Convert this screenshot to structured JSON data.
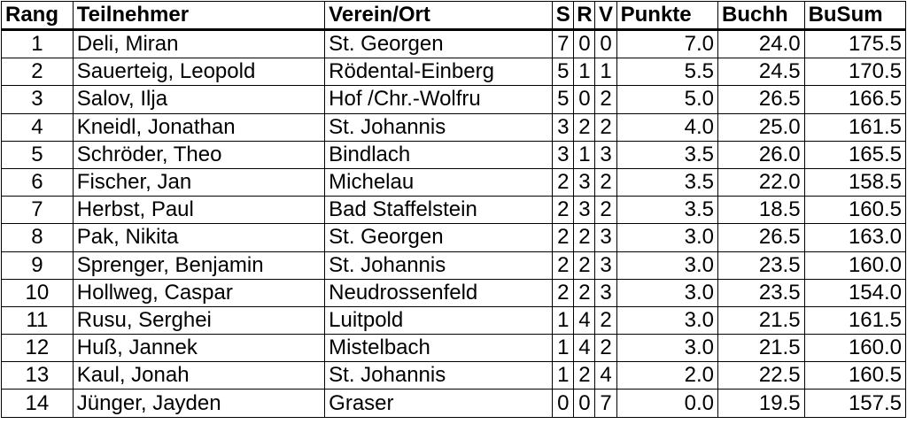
{
  "headers": {
    "rang": "Rang",
    "teilnehmer": "Teilnehmer",
    "verein": "Verein/Ort",
    "s": "S",
    "r": "R",
    "v": "V",
    "punkte": "Punkte",
    "buchh": "Buchh",
    "busum": "BuSum"
  },
  "rows": [
    {
      "rang": "1",
      "name": "Deli, Miran",
      "verein": "St. Georgen",
      "s": "7",
      "r": "0",
      "v": "0",
      "punkte": "7.0",
      "buchh": "24.0",
      "busum": "175.5"
    },
    {
      "rang": "2",
      "name": "Sauerteig, Leopold",
      "verein": "Rödental-Einberg",
      "s": "5",
      "r": "1",
      "v": "1",
      "punkte": "5.5",
      "buchh": "24.5",
      "busum": "170.5"
    },
    {
      "rang": "3",
      "name": "Salov, Ilja",
      "verein": "Hof /Chr.-Wolfru",
      "s": "5",
      "r": "0",
      "v": "2",
      "punkte": "5.0",
      "buchh": "26.5",
      "busum": "166.5"
    },
    {
      "rang": "4",
      "name": "Kneidl, Jonathan",
      "verein": "St. Johannis",
      "s": "3",
      "r": "2",
      "v": "2",
      "punkte": "4.0",
      "buchh": "25.0",
      "busum": "161.5"
    },
    {
      "rang": "5",
      "name": "Schröder, Theo",
      "verein": "Bindlach",
      "s": "3",
      "r": "1",
      "v": "3",
      "punkte": "3.5",
      "buchh": "26.0",
      "busum": "165.5"
    },
    {
      "rang": "6",
      "name": "Fischer, Jan",
      "verein": "Michelau",
      "s": "2",
      "r": "3",
      "v": "2",
      "punkte": "3.5",
      "buchh": "22.0",
      "busum": "158.5"
    },
    {
      "rang": "7",
      "name": "Herbst, Paul",
      "verein": "Bad Staffelstein",
      "s": "2",
      "r": "3",
      "v": "2",
      "punkte": "3.5",
      "buchh": "18.5",
      "busum": "160.5"
    },
    {
      "rang": "8",
      "name": "Pak, Nikita",
      "verein": "St. Georgen",
      "s": "2",
      "r": "2",
      "v": "3",
      "punkte": "3.0",
      "buchh": "26.5",
      "busum": "163.0"
    },
    {
      "rang": "9",
      "name": "Sprenger, Benjamin",
      "verein": "St. Johannis",
      "s": "2",
      "r": "2",
      "v": "3",
      "punkte": "3.0",
      "buchh": "23.5",
      "busum": "160.0"
    },
    {
      "rang": "10",
      "name": "Hollweg, Caspar",
      "verein": "Neudrossenfeld",
      "s": "2",
      "r": "2",
      "v": "3",
      "punkte": "3.0",
      "buchh": "23.5",
      "busum": "154.0"
    },
    {
      "rang": "11",
      "name": "Rusu, Serghei",
      "verein": "Luitpold",
      "s": "1",
      "r": "4",
      "v": "2",
      "punkte": "3.0",
      "buchh": "21.5",
      "busum": "161.5"
    },
    {
      "rang": "12",
      "name": "Huß, Jannek",
      "verein": "Mistelbach",
      "s": "1",
      "r": "4",
      "v": "2",
      "punkte": "3.0",
      "buchh": "21.5",
      "busum": "160.0"
    },
    {
      "rang": "13",
      "name": "Kaul, Jonah",
      "verein": "St. Johannis",
      "s": "1",
      "r": "2",
      "v": "4",
      "punkte": "2.0",
      "buchh": "22.5",
      "busum": "160.5"
    },
    {
      "rang": "14",
      "name": "Jünger, Jayden",
      "verein": "Graser",
      "s": "0",
      "r": "0",
      "v": "7",
      "punkte": "0.0",
      "buchh": "19.5",
      "busum": "157.5"
    }
  ]
}
